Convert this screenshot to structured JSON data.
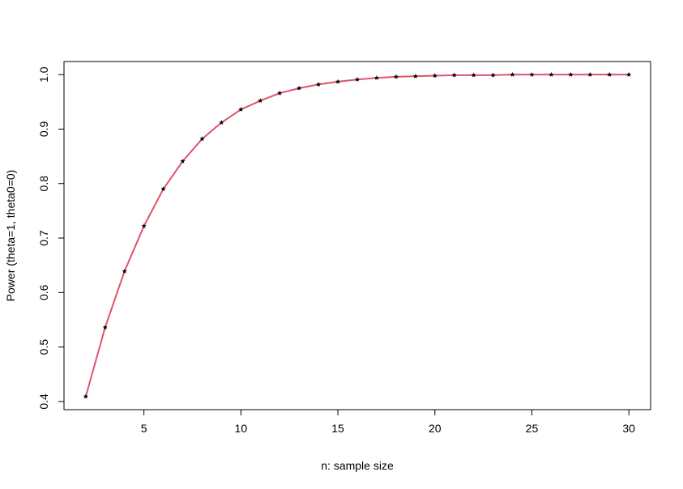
{
  "chart_data": {
    "type": "line",
    "xlabel": "n: sample size",
    "ylabel": "Power (theta=1, theta0=0)",
    "x": [
      2,
      3,
      4,
      5,
      6,
      7,
      8,
      9,
      10,
      11,
      12,
      13,
      14,
      15,
      16,
      17,
      18,
      19,
      20,
      21,
      22,
      23,
      24,
      25,
      26,
      27,
      28,
      29,
      30
    ],
    "series": [
      {
        "color": "#DF536B",
        "point_color": "#000000",
        "values": [
          0.409,
          0.536,
          0.639,
          0.722,
          0.79,
          0.841,
          0.882,
          0.912,
          0.936,
          0.952,
          0.966,
          0.975,
          0.982,
          0.987,
          0.991,
          0.994,
          0.996,
          0.997,
          0.998,
          0.999,
          0.999,
          0.999,
          1,
          1,
          1,
          1,
          1,
          1,
          1
        ]
      }
    ],
    "xlim": [
      0.88,
      31.12
    ],
    "ylim": [
      0.385,
      1.024
    ],
    "xticks": [
      5,
      10,
      15,
      20,
      25,
      30
    ],
    "yticks": [
      0.4,
      0.5,
      0.6,
      0.7,
      0.8,
      0.9,
      {
        "value": 1,
        "label": "1.0"
      }
    ],
    "grid": false
  }
}
